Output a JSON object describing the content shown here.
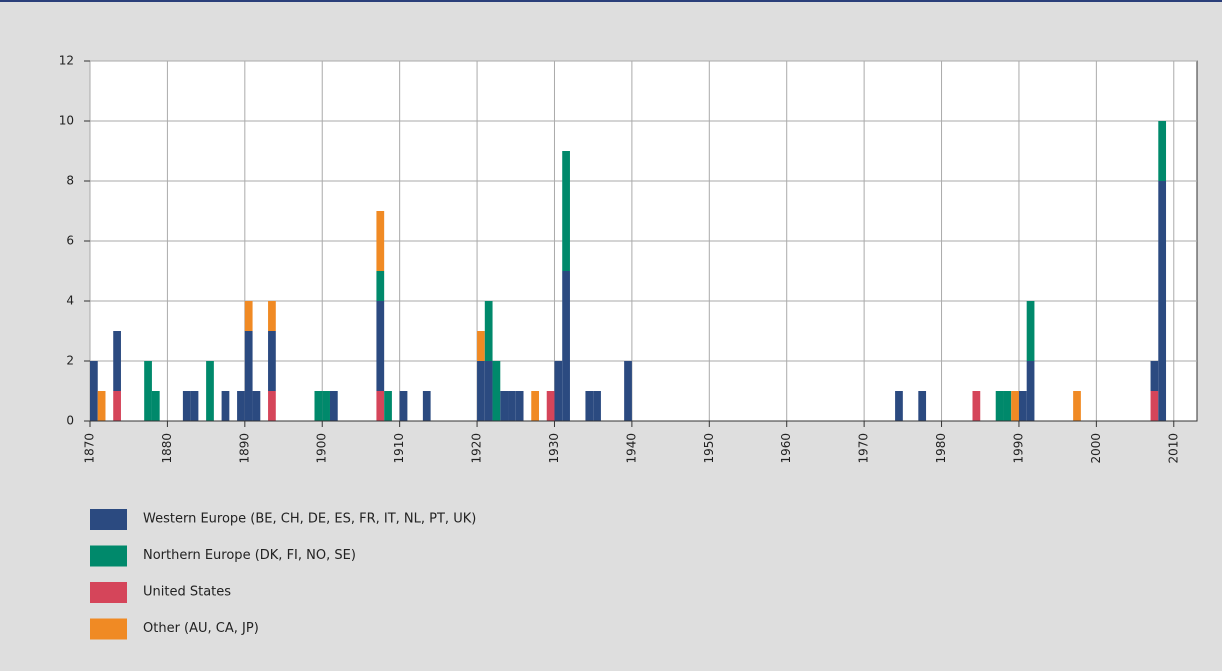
{
  "chart_data": {
    "type": "bar",
    "stacked": true,
    "x": [
      1870,
      1871,
      1873,
      1877,
      1878,
      1882,
      1883,
      1885,
      1887,
      1889,
      1890,
      1891,
      1893,
      1899,
      1900,
      1901,
      1907,
      1908,
      1910,
      1913,
      1920,
      1921,
      1922,
      1923,
      1924,
      1925,
      1927,
      1929,
      1930,
      1931,
      1934,
      1935,
      1939,
      1974,
      1977,
      1984,
      1987,
      1988,
      1989,
      1990,
      1991,
      1997,
      2007,
      2008
    ],
    "series": [
      {
        "name": "Western Europe (BE, CH, DE, ES, FR, IT, NL, PT, UK)",
        "color": "#2b4a80",
        "values": [
          2,
          0,
          2,
          0,
          0,
          1,
          1,
          0,
          1,
          1,
          3,
          1,
          2,
          0,
          0,
          1,
          3,
          0,
          1,
          1,
          2,
          2,
          0,
          1,
          1,
          1,
          0,
          0,
          2,
          5,
          1,
          1,
          2,
          1,
          1,
          0,
          0,
          0,
          0,
          1,
          2,
          0,
          1,
          8
        ]
      },
      {
        "name": "Northern Europe (DK, FI, NO, SE)",
        "color": "#00896b",
        "values": [
          0,
          0,
          0,
          2,
          1,
          0,
          0,
          2,
          0,
          0,
          0,
          0,
          0,
          1,
          1,
          0,
          1,
          1,
          0,
          0,
          0,
          2,
          2,
          0,
          0,
          0,
          0,
          0,
          0,
          4,
          0,
          0,
          0,
          0,
          0,
          0,
          1,
          1,
          0,
          0,
          2,
          0,
          0,
          2
        ]
      },
      {
        "name": "United States",
        "color": "#d5455a",
        "values": [
          0,
          0,
          1,
          0,
          0,
          0,
          0,
          0,
          0,
          0,
          0,
          0,
          1,
          0,
          0,
          0,
          1,
          0,
          0,
          0,
          0,
          0,
          0,
          0,
          0,
          0,
          0,
          1,
          0,
          0,
          0,
          0,
          0,
          0,
          0,
          1,
          0,
          0,
          0,
          0,
          0,
          0,
          1,
          0
        ]
      },
      {
        "name": "Other (AU, CA, JP)",
        "color": "#f08a24",
        "values": [
          0,
          1,
          0,
          0,
          0,
          0,
          0,
          0,
          0,
          0,
          1,
          0,
          1,
          0,
          0,
          0,
          2,
          0,
          0,
          0,
          1,
          0,
          0,
          0,
          0,
          0,
          1,
          0,
          0,
          0,
          0,
          0,
          0,
          0,
          0,
          0,
          0,
          0,
          1,
          0,
          0,
          1,
          0,
          0
        ]
      }
    ],
    "xlim": [
      1870,
      2013
    ],
    "xticks": [
      1870,
      1880,
      1890,
      1900,
      1910,
      1920,
      1930,
      1940,
      1950,
      1960,
      1970,
      1980,
      1990,
      2000,
      2010
    ],
    "ylim": [
      0,
      12
    ],
    "yticks": [
      0,
      2,
      4,
      6,
      8,
      10,
      12
    ],
    "grid": true
  }
}
